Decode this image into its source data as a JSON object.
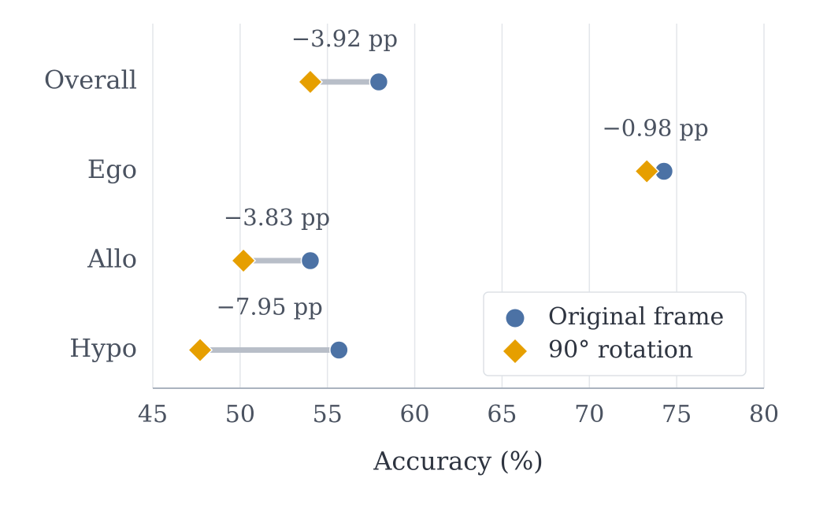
{
  "chart_data": {
    "type": "dumbbell",
    "categories": [
      "Overall",
      "Ego",
      "Allo",
      "Hypo"
    ],
    "series": [
      {
        "name": "Original frame",
        "color": "#4c72a5",
        "marker": "circle",
        "values": [
          57.94,
          74.27,
          54.02,
          55.66
        ]
      },
      {
        "name": "90° rotation",
        "color": "#e69f00",
        "marker": "diamond",
        "values": [
          54.02,
          73.29,
          50.19,
          47.71
        ]
      }
    ],
    "annotations": [
      {
        "text": "−3.92 pp",
        "value": -3.92
      },
      {
        "text": "−0.98 pp",
        "value": -0.98
      },
      {
        "text": "−3.83 pp",
        "value": -3.83
      },
      {
        "text": "−7.95 pp",
        "value": -7.95
      }
    ],
    "xlabel": "Accuracy (%)",
    "xlim": [
      45,
      80
    ],
    "xticks": [
      45,
      50,
      55,
      60,
      65,
      70,
      75,
      80
    ],
    "grid": true,
    "legend_position": "lower right"
  }
}
